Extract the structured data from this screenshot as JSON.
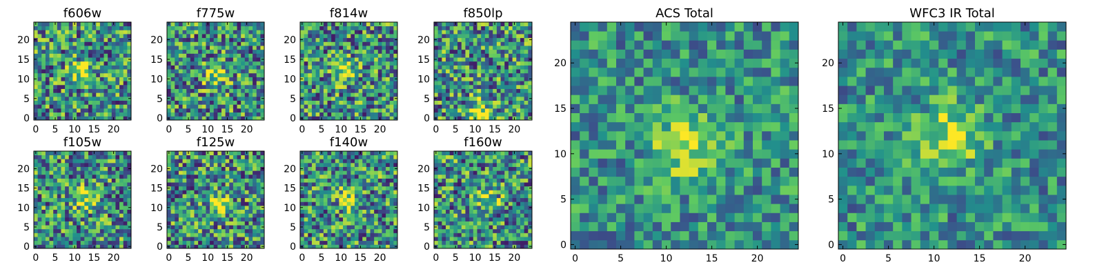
{
  "chart_data": [
    {
      "type": "heatmap",
      "title": "f606w",
      "grid": [
        25,
        25
      ],
      "x_ticks": [
        "0",
        "5",
        "10",
        "15",
        "20"
      ],
      "y_ticks": [
        "0",
        "5",
        "10",
        "15",
        "20"
      ],
      "peak": {
        "x": 12,
        "y": 12
      },
      "seed": 11
    },
    {
      "type": "heatmap",
      "title": "f775w",
      "grid": [
        25,
        25
      ],
      "x_ticks": [
        "0",
        "5",
        "10",
        "15",
        "20"
      ],
      "y_ticks": [
        "0",
        "5",
        "10",
        "15",
        "20"
      ],
      "peak": {
        "x": 12,
        "y": 11
      },
      "seed": 23
    },
    {
      "type": "heatmap",
      "title": "f814w",
      "grid": [
        25,
        25
      ],
      "x_ticks": [
        "0",
        "5",
        "10",
        "15",
        "20"
      ],
      "y_ticks": [
        "0",
        "5",
        "10",
        "15",
        "20"
      ],
      "peak": {
        "x": 11,
        "y": 12
      },
      "seed": 37
    },
    {
      "type": "heatmap",
      "title": "f850lp",
      "grid": [
        25,
        25
      ],
      "x_ticks": [
        "0",
        "5",
        "10",
        "15",
        "20"
      ],
      "y_ticks": [
        "0",
        "5",
        "10",
        "15",
        "20"
      ],
      "peak": {
        "x": 11,
        "y": 2
      },
      "seed": 41
    },
    {
      "type": "heatmap",
      "title": "f105w",
      "grid": [
        25,
        25
      ],
      "x_ticks": [
        "0",
        "5",
        "10",
        "15",
        "20"
      ],
      "y_ticks": [
        "0",
        "5",
        "10",
        "15",
        "20"
      ],
      "peak": {
        "x": 13,
        "y": 12
      },
      "seed": 53
    },
    {
      "type": "heatmap",
      "title": "f125w",
      "grid": [
        25,
        25
      ],
      "x_ticks": [
        "0",
        "5",
        "10",
        "15",
        "20"
      ],
      "y_ticks": [
        "0",
        "5",
        "10",
        "15",
        "20"
      ],
      "peak": {
        "x": 13,
        "y": 11
      },
      "seed": 67
    },
    {
      "type": "heatmap",
      "title": "f140w",
      "grid": [
        25,
        25
      ],
      "x_ticks": [
        "0",
        "5",
        "10",
        "15",
        "20"
      ],
      "y_ticks": [
        "0",
        "5",
        "10",
        "15",
        "20"
      ],
      "peak": {
        "x": 12,
        "y": 12
      },
      "seed": 71
    },
    {
      "type": "heatmap",
      "title": "f160w",
      "grid": [
        25,
        25
      ],
      "x_ticks": [
        "0",
        "5",
        "10",
        "15",
        "20"
      ],
      "y_ticks": [
        "0",
        "5",
        "10",
        "15",
        "20"
      ],
      "peak": {
        "x": 13,
        "y": 12
      },
      "seed": 83
    },
    {
      "type": "heatmap",
      "title": "ACS Total",
      "grid": [
        25,
        25
      ],
      "x_ticks": [
        "0",
        "5",
        "10",
        "15",
        "20"
      ],
      "y_ticks": [
        "0",
        "5",
        "10",
        "15",
        "20"
      ],
      "peak": {
        "x": 12,
        "y": 11
      },
      "seed": 97
    },
    {
      "type": "heatmap",
      "title": "WFC3 IR Total",
      "grid": [
        25,
        25
      ],
      "x_ticks": [
        "0",
        "5",
        "10",
        "15",
        "20"
      ],
      "y_ticks": [
        "0",
        "5",
        "10",
        "15",
        "20"
      ],
      "peak": {
        "x": 12,
        "y": 12
      },
      "seed": 101
    }
  ],
  "colormap": [
    "#440154",
    "#3b528b",
    "#21918c",
    "#5ec962",
    "#fde725"
  ]
}
